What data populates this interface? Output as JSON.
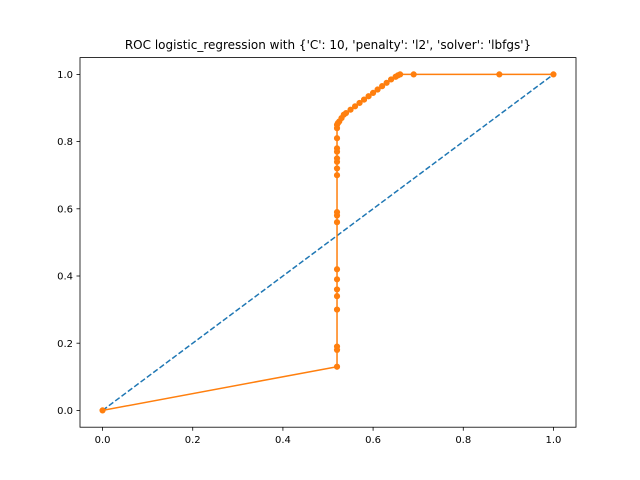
{
  "chart_data": {
    "type": "line",
    "title": "ROC logistic_regression with {'C': 10, 'penalty': 'l2', 'solver': 'lbfgs'}",
    "xlabel": "",
    "ylabel": "",
    "xlim": [
      -0.05,
      1.05
    ],
    "ylim": [
      -0.05,
      1.05
    ],
    "x_ticks": [
      "0.0",
      "0.2",
      "0.4",
      "0.6",
      "0.8",
      "1.0"
    ],
    "y_ticks": [
      "0.0",
      "0.2",
      "0.4",
      "0.6",
      "0.8",
      "1.0"
    ],
    "grid": false,
    "series": [
      {
        "style": "dashed",
        "color": "#1f77b4",
        "markers": false,
        "x": [
          0,
          1
        ],
        "y": [
          0,
          1
        ]
      },
      {
        "style": "solid",
        "color": "#ff7f0e",
        "markers": true,
        "x": [
          0,
          0.52,
          0.52,
          0.52,
          0.52,
          0.52,
          0.52,
          0.52,
          0.52,
          0.52,
          0.52,
          0.52,
          0.52,
          0.52,
          0.52,
          0.52,
          0.52,
          0.52,
          0.52,
          0.52,
          0.52,
          0.522,
          0.525,
          0.53,
          0.535,
          0.54,
          0.55,
          0.56,
          0.57,
          0.58,
          0.59,
          0.6,
          0.61,
          0.62,
          0.63,
          0.64,
          0.65,
          0.655,
          0.66,
          0.69,
          0.88,
          1.0
        ],
        "y": [
          0,
          0.13,
          0.18,
          0.19,
          0.3,
          0.34,
          0.36,
          0.39,
          0.42,
          0.56,
          0.58,
          0.59,
          0.7,
          0.72,
          0.74,
          0.75,
          0.77,
          0.78,
          0.81,
          0.84,
          0.85,
          0.855,
          0.86,
          0.87,
          0.88,
          0.885,
          0.895,
          0.905,
          0.915,
          0.925,
          0.935,
          0.945,
          0.955,
          0.965,
          0.975,
          0.985,
          0.993,
          0.997,
          1.0,
          1.0,
          1.0,
          1.0
        ]
      }
    ]
  }
}
